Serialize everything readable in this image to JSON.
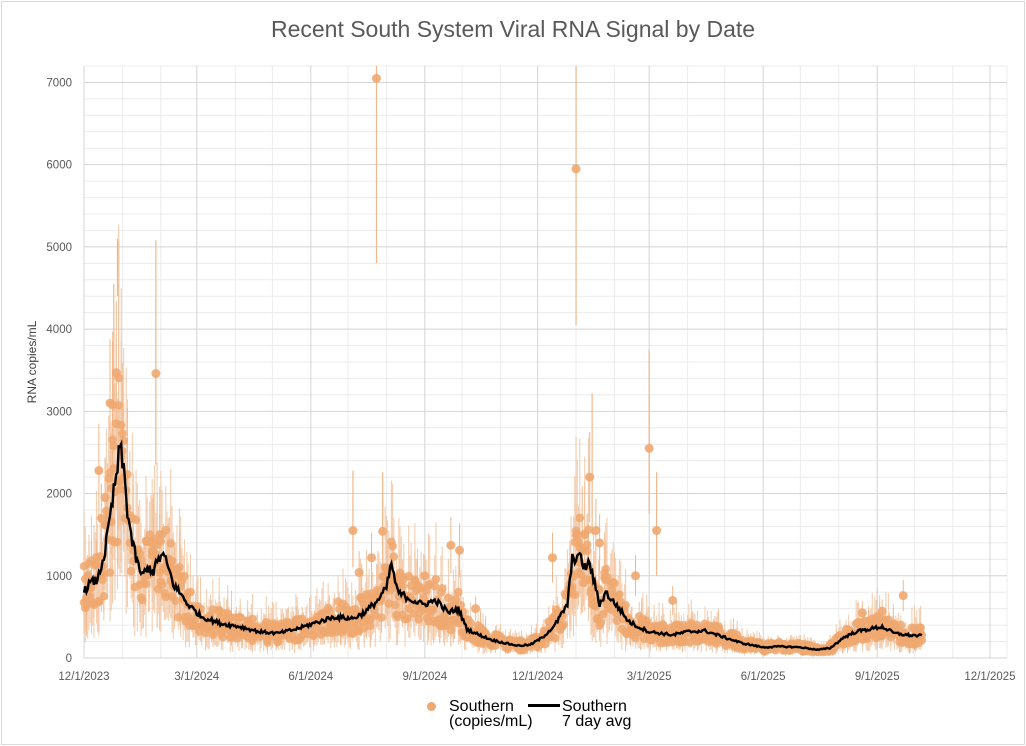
{
  "chart_data": {
    "type": "scatter",
    "title": "Recent South System Viral RNA Signal by Date",
    "xlabel": "",
    "ylabel": "RNA copies/mL",
    "x_ticks": [
      "12/1/2023",
      "3/1/2024",
      "6/1/2024",
      "9/1/2024",
      "12/1/2024",
      "3/1/2025",
      "6/1/2025",
      "9/1/2025",
      "12/1/2025"
    ],
    "ylim": [
      0,
      7200
    ],
    "y_ticks": [
      0,
      1000,
      2000,
      3000,
      4000,
      5000,
      6000,
      7000
    ],
    "grid": true,
    "legend_position": "bottom",
    "colors": {
      "points": "#eea870",
      "error_bars": "#f0b88c",
      "avg_line": "#000000",
      "grid": "#d9d9d9"
    },
    "series": [
      {
        "name": "Southern (copies/mL)",
        "kind": "points_with_error_bars"
      },
      {
        "name": "Southern 7 day avg",
        "kind": "line"
      }
    ],
    "avg_line": [
      [
        "2023-12-01",
        800
      ],
      [
        "2023-12-05",
        900
      ],
      [
        "2023-12-12",
        950
      ],
      [
        "2023-12-18",
        1300
      ],
      [
        "2023-12-22",
        1700
      ],
      [
        "2023-12-26",
        2100
      ],
      [
        "2023-12-30",
        2550
      ],
      [
        "2024-01-02",
        2300
      ],
      [
        "2024-01-05",
        1800
      ],
      [
        "2024-01-09",
        1400
      ],
      [
        "2024-01-13",
        1150
      ],
      [
        "2024-01-17",
        1000
      ],
      [
        "2024-01-22",
        1100
      ],
      [
        "2024-01-26",
        1050
      ],
      [
        "2024-01-30",
        1200
      ],
      [
        "2024-02-03",
        1250
      ],
      [
        "2024-02-07",
        1100
      ],
      [
        "2024-02-11",
        900
      ],
      [
        "2024-02-16",
        800
      ],
      [
        "2024-02-23",
        650
      ],
      [
        "2024-03-05",
        500
      ],
      [
        "2024-03-20",
        420
      ],
      [
        "2024-04-05",
        380
      ],
      [
        "2024-04-20",
        320
      ],
      [
        "2024-05-05",
        300
      ],
      [
        "2024-05-20",
        350
      ],
      [
        "2024-06-05",
        430
      ],
      [
        "2024-06-20",
        500
      ],
      [
        "2024-07-05",
        480
      ],
      [
        "2024-07-15",
        560
      ],
      [
        "2024-07-25",
        700
      ],
      [
        "2024-08-01",
        850
      ],
      [
        "2024-08-05",
        1150
      ],
      [
        "2024-08-10",
        800
      ],
      [
        "2024-08-20",
        720
      ],
      [
        "2024-08-30",
        650
      ],
      [
        "2024-09-10",
        700
      ],
      [
        "2024-09-20",
        550
      ],
      [
        "2024-09-28",
        600
      ],
      [
        "2024-10-05",
        350
      ],
      [
        "2024-10-15",
        280
      ],
      [
        "2024-10-25",
        220
      ],
      [
        "2024-11-05",
        180
      ],
      [
        "2024-11-15",
        150
      ],
      [
        "2024-11-25",
        160
      ],
      [
        "2024-12-05",
        250
      ],
      [
        "2024-12-15",
        400
      ],
      [
        "2024-12-25",
        650
      ],
      [
        "2024-12-29",
        1200
      ],
      [
        "2025-01-03",
        1250
      ],
      [
        "2025-01-08",
        1100
      ],
      [
        "2025-01-12",
        1150
      ],
      [
        "2025-01-16",
        900
      ],
      [
        "2025-01-20",
        650
      ],
      [
        "2025-01-25",
        800
      ],
      [
        "2025-01-30",
        700
      ],
      [
        "2025-02-05",
        600
      ],
      [
        "2025-02-12",
        450
      ],
      [
        "2025-02-20",
        380
      ],
      [
        "2025-03-01",
        320
      ],
      [
        "2025-03-10",
        300
      ],
      [
        "2025-03-20",
        280
      ],
      [
        "2025-04-01",
        320
      ],
      [
        "2025-04-15",
        330
      ],
      [
        "2025-05-01",
        250
      ],
      [
        "2025-05-15",
        180
      ],
      [
        "2025-06-01",
        130
      ],
      [
        "2025-06-15",
        140
      ],
      [
        "2025-07-01",
        130
      ],
      [
        "2025-07-15",
        100
      ],
      [
        "2025-07-25",
        120
      ],
      [
        "2025-08-05",
        250
      ],
      [
        "2025-08-15",
        320
      ],
      [
        "2025-08-25",
        350
      ],
      [
        "2025-09-05",
        380
      ],
      [
        "2025-09-15",
        300
      ],
      [
        "2025-09-25",
        280
      ],
      [
        "2025-10-05",
        270
      ]
    ],
    "outlier_points": [
      [
        "2023-12-03",
        700
      ],
      [
        "2023-12-04",
        1000
      ],
      [
        "2023-12-06",
        850
      ],
      [
        "2023-12-09",
        650
      ],
      [
        "2023-12-11",
        1150
      ],
      [
        "2023-12-13",
        2280
      ],
      [
        "2023-12-15",
        1700
      ],
      [
        "2023-12-18",
        1950
      ],
      [
        "2023-12-22",
        3100
      ],
      [
        "2023-12-24",
        3080
      ],
      [
        "2023-12-27",
        3470
      ],
      [
        "2023-12-30",
        2150
      ],
      [
        "2024-01-28",
        3460
      ],
      [
        "2024-02-10",
        1180
      ],
      [
        "2024-02-23",
        650
      ],
      [
        "2024-07-05",
        1550
      ],
      [
        "2024-07-10",
        1040
      ],
      [
        "2024-07-20",
        1220
      ],
      [
        "2024-07-24",
        7050
      ],
      [
        "2024-07-29",
        1540
      ],
      [
        "2024-08-10",
        850
      ],
      [
        "2024-09-01",
        1000
      ],
      [
        "2024-09-22",
        1370
      ],
      [
        "2024-09-29",
        1310
      ],
      [
        "2024-10-12",
        600
      ],
      [
        "2024-12-13",
        1220
      ],
      [
        "2025-01-01",
        5950
      ],
      [
        "2025-01-04",
        1350
      ],
      [
        "2025-01-12",
        2200
      ],
      [
        "2025-01-17",
        1550
      ],
      [
        "2025-01-20",
        1400
      ],
      [
        "2025-02-18",
        1000
      ],
      [
        "2025-03-01",
        2550
      ],
      [
        "2025-03-07",
        1550
      ],
      [
        "2025-03-20",
        700
      ],
      [
        "2025-08-20",
        550
      ],
      [
        "2025-09-05",
        570
      ],
      [
        "2025-09-22",
        760
      ]
    ],
    "whisker_extremes": [
      [
        "2023-12-28",
        5100,
        4400
      ],
      [
        "2023-12-25",
        4550,
        3000
      ],
      [
        "2024-01-28",
        5080,
        2350
      ],
      [
        "2024-07-24",
        7200,
        4800
      ],
      [
        "2025-01-01",
        7200,
        4050
      ],
      [
        "2025-01-14",
        3220,
        1500
      ],
      [
        "2025-03-01",
        3750,
        1750
      ],
      [
        "2025-03-07",
        2260,
        1000
      ],
      [
        "2024-07-29",
        2260,
        900
      ],
      [
        "2024-07-05",
        2280,
        1100
      ]
    ]
  }
}
